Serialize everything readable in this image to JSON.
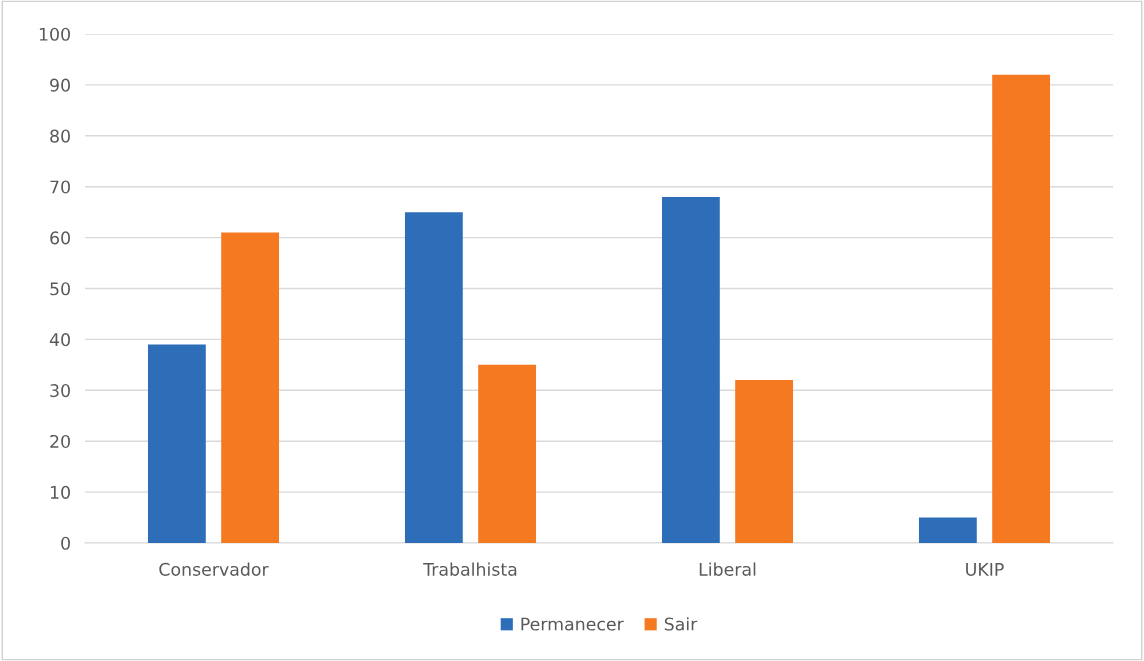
{
  "chart_data": {
    "type": "bar",
    "categories": [
      "Conservador",
      "Trabalhista",
      "Liberal",
      "UKIP"
    ],
    "series": [
      {
        "name": "Permanecer",
        "color": "#2e6eb8",
        "values": [
          39,
          65,
          68,
          5
        ]
      },
      {
        "name": "Sair",
        "color": "#f47920",
        "values": [
          61,
          35,
          32,
          92
        ]
      }
    ],
    "ylim": [
      0,
      100
    ],
    "yticks": [
      0,
      10,
      20,
      30,
      40,
      50,
      60,
      70,
      80,
      90,
      100
    ],
    "grid": "y",
    "legend": "bottom"
  }
}
